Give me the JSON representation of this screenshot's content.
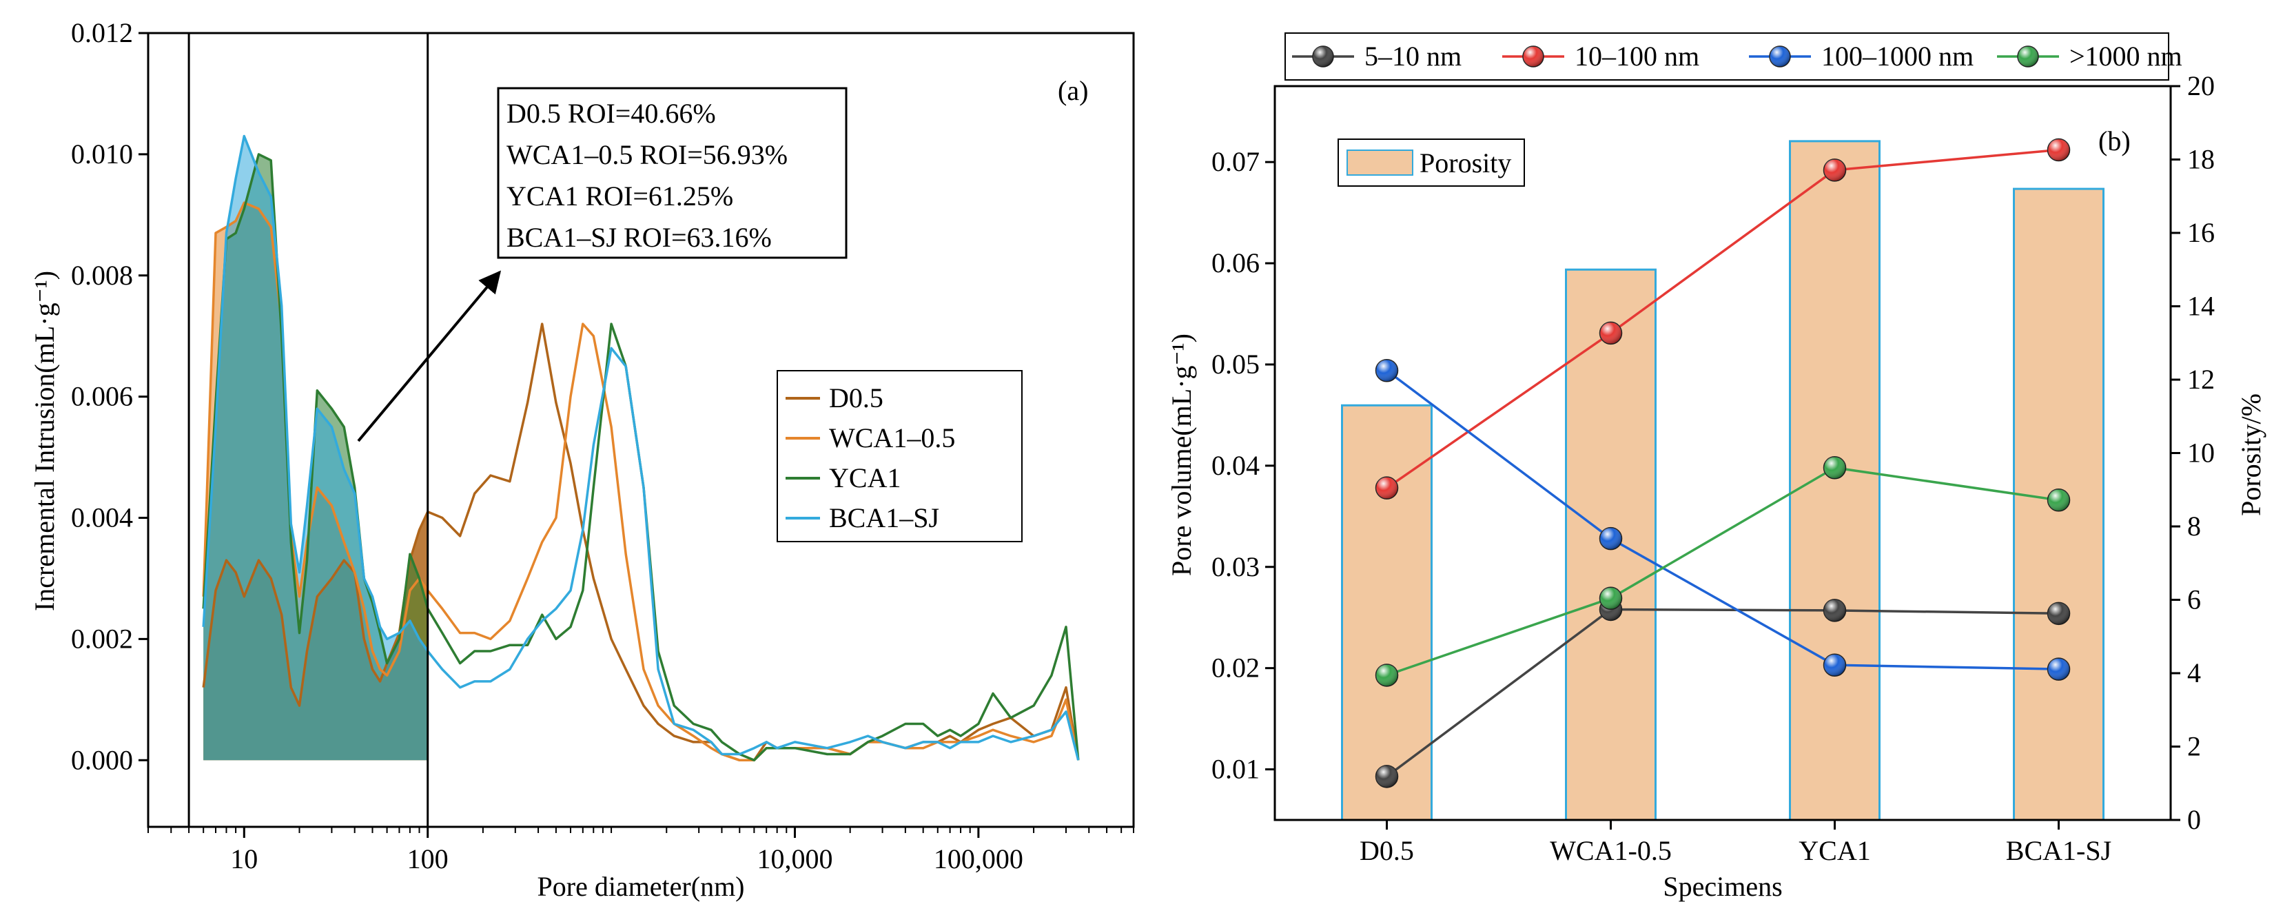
{
  "chart_data": [
    {
      "type": "area",
      "panel_label": "(a)",
      "xlabel": "Pore diameter(nm)",
      "ylabel": "Incremental Intrusion(mL·g⁻¹)",
      "xscale": "log",
      "xlim": [
        3,
        700000
      ],
      "ylim": [
        -0.0011,
        0.012
      ],
      "yticks": [
        "0.000",
        "0.002",
        "0.004",
        "0.006",
        "0.008",
        "0.010",
        "0.012"
      ],
      "xticks": [
        {
          "value": 10,
          "label": "10"
        },
        {
          "value": 100,
          "label": "100"
        },
        {
          "value": 10000,
          "label": "10,000"
        },
        {
          "value": 100000,
          "label": "100,000"
        }
      ],
      "annotation_lines": [
        "D0.5 ROI=40.66%",
        "WCA1–0.5 ROI=56.93%",
        "YCA1 ROI=61.25%",
        "BCA1–SJ ROI=63.16%"
      ],
      "region": [
        5,
        100
      ],
      "legend_position": "center-right",
      "series": [
        {
          "name": "D0.5",
          "color": "#b0651a",
          "x": [
            6,
            7,
            8,
            9,
            10,
            12,
            14,
            16,
            18,
            20,
            22,
            25,
            30,
            35,
            40,
            45,
            50,
            55,
            60,
            70,
            80,
            90,
            100,
            120,
            150,
            180,
            220,
            280,
            350,
            420,
            500,
            600,
            700,
            800,
            1000,
            1200,
            1500,
            1800,
            2200,
            2800,
            3500,
            4000,
            5000,
            6000,
            7000,
            8000,
            10000,
            15000,
            20000,
            25000,
            30000,
            40000,
            50000,
            60000,
            70000,
            80000,
            100000,
            120000,
            150000,
            200000,
            250000,
            300000,
            350000
          ],
          "y": [
            0.0012,
            0.0028,
            0.0033,
            0.0031,
            0.0027,
            0.0033,
            0.003,
            0.0024,
            0.0012,
            0.0009,
            0.0018,
            0.0027,
            0.003,
            0.0033,
            0.0031,
            0.002,
            0.0015,
            0.0013,
            0.0016,
            0.0021,
            0.0033,
            0.0038,
            0.0041,
            0.004,
            0.0037,
            0.0044,
            0.0047,
            0.0046,
            0.0059,
            0.0072,
            0.0059,
            0.0049,
            0.0038,
            0.003,
            0.002,
            0.0015,
            0.0009,
            0.0006,
            0.0004,
            0.0003,
            0.0003,
            0.0001,
            0.0,
            0.0,
            0.0003,
            0.0002,
            0.0002,
            0.0002,
            0.0001,
            0.0003,
            0.0003,
            0.0002,
            0.0003,
            0.0003,
            0.0004,
            0.0003,
            0.0005,
            0.0006,
            0.0007,
            0.0004,
            0.0005,
            0.0012,
            0.0
          ]
        },
        {
          "name": "WCA1–0.5",
          "color": "#e5862c",
          "x": [
            6,
            7,
            8,
            9,
            10,
            12,
            14,
            16,
            18,
            20,
            22,
            25,
            30,
            35,
            40,
            45,
            50,
            55,
            60,
            70,
            80,
            90,
            100,
            120,
            150,
            180,
            220,
            280,
            350,
            420,
            500,
            600,
            700,
            800,
            1000,
            1200,
            1500,
            1800,
            2200,
            2800,
            3500,
            4000,
            5000,
            6000,
            7000,
            8000,
            10000,
            15000,
            20000,
            25000,
            30000,
            40000,
            50000,
            60000,
            70000,
            80000,
            100000,
            120000,
            150000,
            200000,
            250000,
            300000,
            350000
          ],
          "y": [
            0.0027,
            0.0087,
            0.0088,
            0.0089,
            0.0092,
            0.0091,
            0.0088,
            0.0072,
            0.0037,
            0.0027,
            0.0036,
            0.0045,
            0.0042,
            0.0036,
            0.0031,
            0.0025,
            0.0018,
            0.0015,
            0.0014,
            0.0018,
            0.0028,
            0.003,
            0.0028,
            0.0025,
            0.0021,
            0.0021,
            0.002,
            0.0023,
            0.003,
            0.0036,
            0.004,
            0.006,
            0.0072,
            0.007,
            0.0055,
            0.0034,
            0.0015,
            0.0009,
            0.0006,
            0.0004,
            0.0002,
            0.0001,
            0.0,
            0.0,
            0.0002,
            0.0002,
            0.0002,
            0.0002,
            0.0001,
            0.0003,
            0.0003,
            0.0002,
            0.0002,
            0.0003,
            0.0003,
            0.0003,
            0.0004,
            0.0005,
            0.0004,
            0.0003,
            0.0004,
            0.001,
            0.0
          ]
        },
        {
          "name": "YCA1",
          "color": "#2e7d32",
          "x": [
            6,
            7,
            8,
            9,
            10,
            12,
            14,
            16,
            18,
            20,
            22,
            25,
            30,
            35,
            40,
            45,
            50,
            55,
            60,
            70,
            80,
            90,
            100,
            120,
            150,
            180,
            220,
            280,
            350,
            420,
            500,
            600,
            700,
            800,
            1000,
            1200,
            1500,
            1800,
            2200,
            2800,
            3500,
            4000,
            5000,
            6000,
            7000,
            8000,
            10000,
            15000,
            20000,
            25000,
            30000,
            40000,
            50000,
            60000,
            70000,
            80000,
            100000,
            120000,
            150000,
            200000,
            250000,
            300000,
            350000
          ],
          "y": [
            0.0025,
            0.0059,
            0.0086,
            0.0087,
            0.0091,
            0.01,
            0.0099,
            0.007,
            0.0036,
            0.0021,
            0.0033,
            0.0061,
            0.0058,
            0.0055,
            0.0045,
            0.003,
            0.0026,
            0.0021,
            0.0016,
            0.002,
            0.0034,
            0.003,
            0.0025,
            0.0021,
            0.0016,
            0.0018,
            0.0018,
            0.0019,
            0.0019,
            0.0024,
            0.002,
            0.0022,
            0.0028,
            0.0045,
            0.0072,
            0.0065,
            0.0045,
            0.0018,
            0.0009,
            0.0006,
            0.0005,
            0.0003,
            0.0001,
            0.0,
            0.0002,
            0.0002,
            0.0002,
            0.0001,
            0.0001,
            0.0003,
            0.0004,
            0.0006,
            0.0006,
            0.0004,
            0.0005,
            0.0004,
            0.0006,
            0.0011,
            0.0007,
            0.0009,
            0.0014,
            0.0022,
            0.0
          ]
        },
        {
          "name": "BCA1–SJ",
          "color": "#33aadd",
          "x": [
            6,
            7,
            8,
            9,
            10,
            12,
            14,
            16,
            18,
            20,
            22,
            25,
            30,
            35,
            40,
            45,
            50,
            55,
            60,
            70,
            80,
            90,
            100,
            120,
            150,
            180,
            220,
            280,
            350,
            420,
            500,
            600,
            700,
            800,
            1000,
            1200,
            1500,
            1800,
            2200,
            2800,
            3500,
            4000,
            5000,
            6000,
            7000,
            8000,
            10000,
            15000,
            20000,
            25000,
            30000,
            40000,
            50000,
            60000,
            70000,
            80000,
            100000,
            120000,
            150000,
            200000,
            250000,
            300000,
            350000
          ],
          "y": [
            0.0022,
            0.0055,
            0.0087,
            0.0096,
            0.0103,
            0.0097,
            0.0093,
            0.0075,
            0.0039,
            0.0031,
            0.0042,
            0.0058,
            0.0055,
            0.0048,
            0.0044,
            0.003,
            0.0027,
            0.0022,
            0.002,
            0.0021,
            0.0023,
            0.002,
            0.0018,
            0.0015,
            0.0012,
            0.0013,
            0.0013,
            0.0015,
            0.002,
            0.0023,
            0.0025,
            0.0028,
            0.0038,
            0.0052,
            0.0068,
            0.0065,
            0.0045,
            0.0015,
            0.0006,
            0.0005,
            0.0003,
            0.0001,
            0.0001,
            0.0002,
            0.0003,
            0.0002,
            0.0003,
            0.0002,
            0.0003,
            0.0004,
            0.0003,
            0.0002,
            0.0003,
            0.0003,
            0.0002,
            0.0003,
            0.0003,
            0.0004,
            0.0003,
            0.0004,
            0.0005,
            0.0008,
            0.0
          ]
        }
      ]
    },
    {
      "type": "bar+line",
      "panel_label": "(b)",
      "xlabel": "Specimens",
      "ylabel": "Pore volume(mL·g⁻¹)",
      "y2label": "Porosity/%",
      "categories": [
        "D0.5",
        "WCA1-0.5",
        "YCA1",
        "BCA1-SJ"
      ],
      "ylim": [
        0.005,
        0.0775
      ],
      "yticks": [
        "0.01",
        "0.02",
        "0.03",
        "0.04",
        "0.05",
        "0.06",
        "0.07"
      ],
      "y2lim": [
        0,
        20
      ],
      "y2ticks": [
        "0",
        "2",
        "4",
        "6",
        "8",
        "10",
        "12",
        "14",
        "16",
        "18",
        "20"
      ],
      "bar_series": {
        "name": "Porosity",
        "color": "#f2c8a0",
        "edge": "#33aadd",
        "values": [
          11.3,
          15.0,
          18.5,
          17.2
        ]
      },
      "line_series": [
        {
          "name": "5–10 nm",
          "color": "#444444",
          "values": [
            0.0093,
            0.0258,
            0.0257,
            0.0254
          ]
        },
        {
          "name": "10–100 nm",
          "color": "#e53935",
          "values": [
            0.0378,
            0.0531,
            0.0692,
            0.0712
          ]
        },
        {
          "name": "100–1000 nm",
          "color": "#1e63d6",
          "values": [
            0.0494,
            0.0328,
            0.0203,
            0.0199
          ]
        },
        {
          "name": ">1000 nm",
          "color": "#3aa54d",
          "values": [
            0.0193,
            0.0269,
            0.0398,
            0.0366
          ]
        }
      ],
      "legend_position": "top"
    }
  ]
}
